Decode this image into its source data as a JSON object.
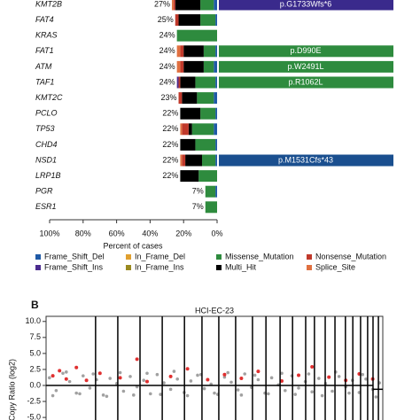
{
  "chart_data": [
    {
      "type": "bar",
      "orientation": "horizontal",
      "stacked": true,
      "categories": [
        "KMT2B",
        "FAT4",
        "KRAS",
        "FAT1",
        "ATM",
        "TAF1",
        "KMT2C",
        "PCLO",
        "TP53",
        "CHD4",
        "NSD1",
        "LRP1B",
        "PGR",
        "ESR1"
      ],
      "values": [
        27,
        25,
        24,
        24,
        24,
        24,
        23,
        22,
        22,
        22,
        22,
        22,
        7,
        7
      ],
      "value_labels": [
        "27%",
        "25%",
        "24%",
        "24%",
        "24%",
        "24%",
        "23%",
        "22%",
        "22%",
        "22%",
        "22%",
        "22%",
        "7%",
        "7%"
      ],
      "series": [
        {
          "name": "Frame_Shift_Del",
          "color": "#1f5aa6",
          "values": [
            2,
            1,
            0,
            1,
            2,
            1,
            2,
            1,
            2,
            1,
            1,
            0,
            1,
            0
          ]
        },
        {
          "name": "In_Frame_Del",
          "color": "#e0a030",
          "values": [
            0,
            0,
            0,
            0,
            0,
            0,
            0,
            0,
            0,
            0,
            0,
            0,
            0,
            0
          ]
        },
        {
          "name": "Missense_Mutation",
          "color": "#2e8b3e",
          "values": [
            8,
            9,
            24,
            7,
            6,
            12,
            10,
            9,
            13,
            12,
            8,
            11,
            6,
            7
          ]
        },
        {
          "name": "Nonsense_Mutation",
          "color": "#c0392b",
          "values": [
            1,
            2,
            0,
            2,
            2,
            1,
            2,
            0,
            4,
            0,
            2,
            0,
            0,
            0
          ]
        },
        {
          "name": "Frame_Shift_Ins",
          "color": "#4b2c8f",
          "values": [
            0,
            0,
            0,
            0,
            0,
            1,
            0,
            0,
            0,
            0,
            0,
            0,
            0,
            0
          ]
        },
        {
          "name": "In_Frame_Ins",
          "color": "#9a8a20",
          "values": [
            0,
            0,
            0,
            0,
            0,
            0,
            0,
            0,
            0,
            0,
            0,
            0,
            0,
            0
          ]
        },
        {
          "name": "Multi_Hit",
          "color": "#000000",
          "values": [
            15,
            13,
            0,
            12,
            12,
            9,
            9,
            12,
            2,
            9,
            10,
            11,
            0,
            0
          ]
        },
        {
          "name": "Splice_Site",
          "color": "#e07040",
          "values": [
            1,
            0,
            0,
            2,
            2,
            0,
            0,
            0,
            1,
            0,
            1,
            0,
            0,
            0
          ]
        }
      ],
      "annotations": [
        {
          "category": "KMT2B",
          "text": "p.G1733Wfs*6",
          "color": "#3a2a8c"
        },
        {
          "category": "FAT1",
          "text": "p.D990E",
          "color": "#2e8b3e"
        },
        {
          "category": "ATM",
          "text": "p.W2491L",
          "color": "#2e8b3e"
        },
        {
          "category": "TAF1",
          "text": "p.R1062L",
          "color": "#2e8b3e"
        },
        {
          "category": "NSD1",
          "text": "p.M1531Cfs*43",
          "color": "#1a4f8f"
        }
      ],
      "x_label": "Percent of cases",
      "xlim": [
        100,
        0
      ],
      "xticks": [
        {
          "value": 100,
          "label": "100%"
        },
        {
          "value": 80,
          "label": "80%"
        },
        {
          "value": 60,
          "label": "60%"
        },
        {
          "value": 40,
          "label": "40%"
        },
        {
          "value": 20,
          "label": "20%"
        },
        {
          "value": 0,
          "label": "0%"
        }
      ]
    },
    {
      "type": "scatter",
      "panel": "B",
      "title": "HCI-EC-23",
      "y_label": "Copy Ratio (log2)",
      "xlim": [
        0,
        100
      ],
      "ylim": [
        -5.4,
        10.8
      ],
      "yticks": [
        {
          "value": 10,
          "label": "10.0"
        },
        7.5,
        {
          "value": 5,
          "label": "5.0"
        },
        2.5,
        {
          "value": 0,
          "label": "0.0"
        },
        -2.5,
        {
          "value": -5,
          "label": "-5.0"
        }
      ],
      "series": [
        {
          "name": "bins",
          "color": "#8a8a8a",
          "x": [
            1,
            3,
            5,
            7,
            9,
            11,
            13,
            15,
            17,
            19,
            21,
            23,
            25,
            27,
            29,
            31,
            33,
            35,
            37,
            39,
            41,
            43,
            45,
            47,
            49,
            51,
            53,
            55,
            57,
            59,
            61,
            63,
            65,
            67,
            69,
            71,
            73,
            75,
            77,
            79,
            81,
            83,
            85,
            87,
            89,
            91,
            93,
            95,
            97,
            99,
            2,
            6,
            10,
            14,
            18,
            22,
            26,
            30,
            34,
            38,
            42,
            46,
            50,
            54,
            58,
            62,
            66,
            70,
            74,
            78,
            82,
            86,
            90,
            94,
            98
          ],
          "y": [
            1.2,
            -0.8,
            1.9,
            0.6,
            -1.2,
            1.5,
            -0.4,
            0.9,
            -1.5,
            1.1,
            0.3,
            -0.9,
            1.4,
            -0.2,
            0.8,
            -1.3,
            1.7,
            0.4,
            -0.6,
            1.0,
            -1.1,
            0.7,
            1.6,
            -0.5,
            0.2,
            -1.4,
            1.3,
            0.5,
            -0.7,
            1.8,
            -0.3,
            0.9,
            -1.2,
            1.2,
            0.1,
            -0.8,
            1.5,
            -0.4,
            0.6,
            -1.0,
            1.1,
            0.3,
            -0.9,
            1.4,
            -0.2,
            0.8,
            -1.1,
            1.0,
            -0.6,
            0.4,
            -1.6,
            2.1,
            -1.3,
            1.8,
            -1.7,
            2.0,
            -1.5,
            1.9,
            -1.4,
            2.2,
            -1.6,
            1.7,
            -1.2,
            2.0,
            -1.5,
            1.6,
            -1.3,
            1.9,
            -1.4,
            1.8,
            -1.6,
            2.1,
            -1.2,
            1.7,
            -1.8
          ]
        },
        {
          "name": "hits",
          "color": "#e03030",
          "x": [
            2,
            4,
            6,
            9,
            12,
            16,
            22,
            27,
            30,
            37,
            42,
            48,
            53,
            58,
            63,
            70,
            75,
            79,
            84,
            89,
            93,
            97
          ],
          "y": [
            1.5,
            2.3,
            1.0,
            2.8,
            0.8,
            1.9,
            1.2,
            4.1,
            0.6,
            1.4,
            2.6,
            0.9,
            1.7,
            1.1,
            2.2,
            0.7,
            1.6,
            2.9,
            1.3,
            0.8,
            1.8,
            1.0
          ]
        }
      ],
      "segments": [
        {
          "x": [
            0,
            97.1
          ],
          "value": 0
        },
        {
          "x": [
            97.1,
            100
          ],
          "value": -0.6
        }
      ],
      "boundaries": [
        14.7,
        21.3,
        27.9,
        34.5,
        41.1,
        46.3,
        51.3,
        56.3,
        61.3,
        65.3,
        69.5,
        73.2,
        77.1,
        79.7,
        82.9,
        85.8,
        88.9,
        91.1,
        93.4,
        95.5,
        97.1,
        98.7
      ]
    }
  ]
}
